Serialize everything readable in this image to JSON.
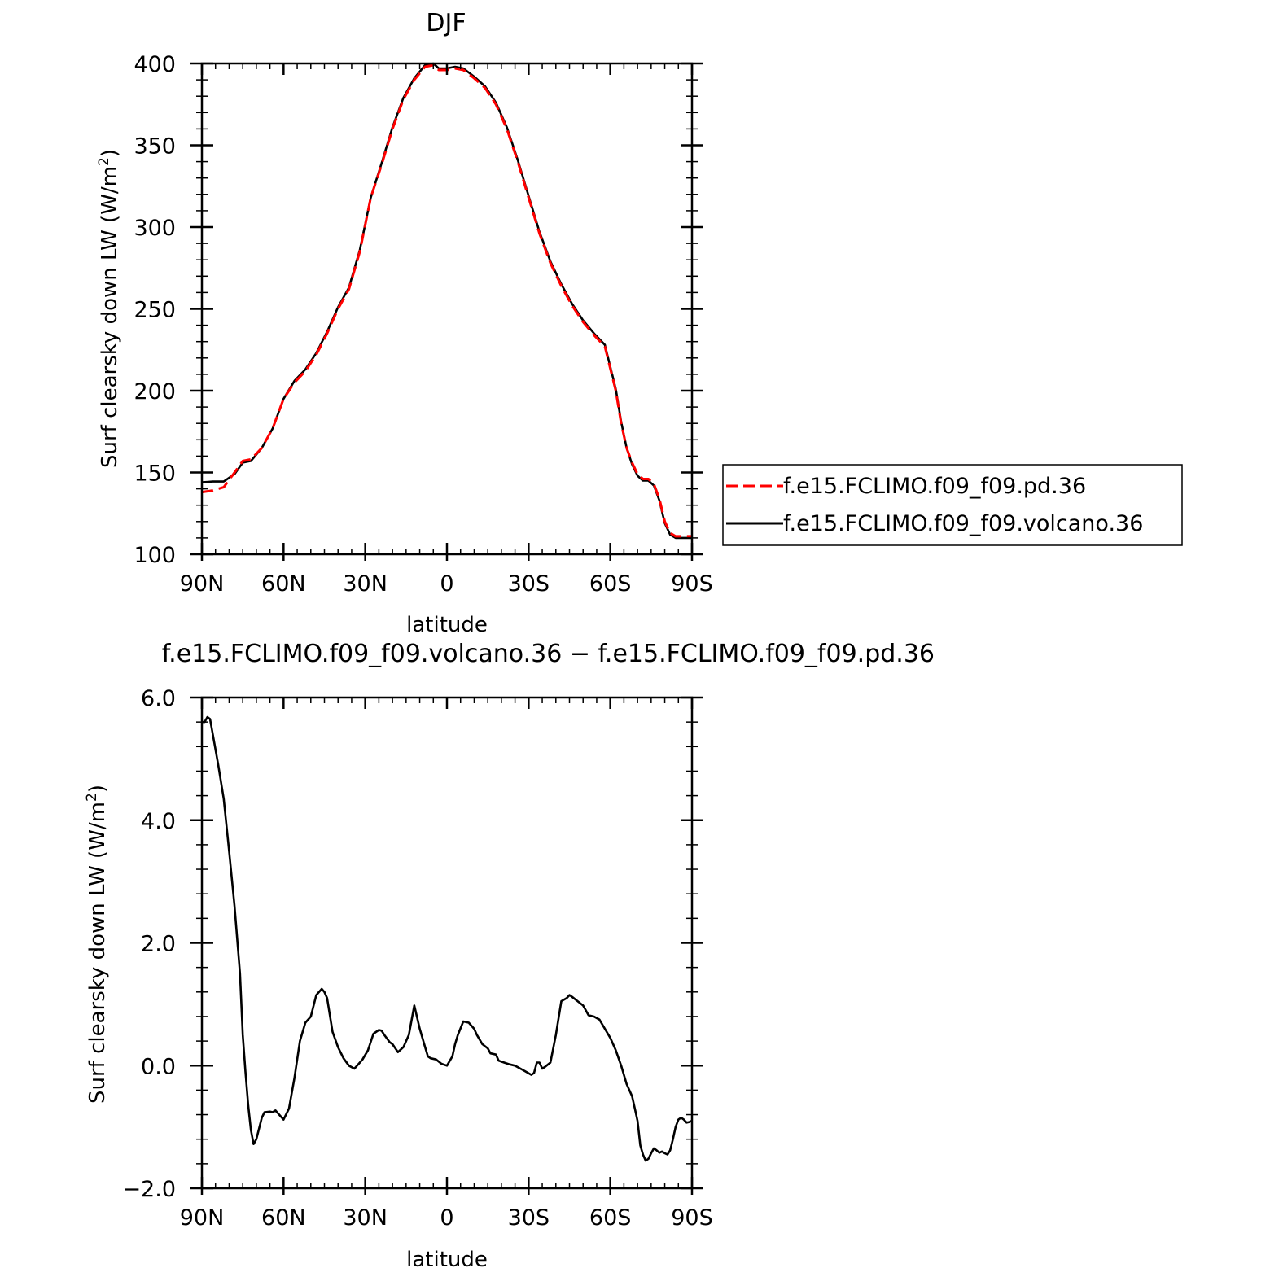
{
  "chart_data": [
    {
      "type": "line",
      "title": "DJF",
      "xlabel": "latitude",
      "ylabel": "Surf clearsky down LW (W/m²)",
      "ylabel_text": "Surf clearsky down LW (W/m",
      "ylabel_sup": "2",
      "ylabel_close": ")",
      "xlim": [
        90,
        -90
      ],
      "ylim": [
        100,
        400
      ],
      "xticks": [
        {
          "value": 90,
          "label": "90N"
        },
        {
          "value": 60,
          "label": "60N"
        },
        {
          "value": 30,
          "label": "30N"
        },
        {
          "value": 0,
          "label": "0"
        },
        {
          "value": -30,
          "label": "30S"
        },
        {
          "value": -60,
          "label": "60S"
        },
        {
          "value": -90,
          "label": "90S"
        }
      ],
      "yticks": [
        {
          "value": 100,
          "label": "100"
        },
        {
          "value": 150,
          "label": "150"
        },
        {
          "value": 200,
          "label": "200"
        },
        {
          "value": 250,
          "label": "250"
        },
        {
          "value": 300,
          "label": "300"
        },
        {
          "value": 350,
          "label": "350"
        },
        {
          "value": 400,
          "label": "400"
        }
      ],
      "legend": {
        "placement": "right"
      },
      "series": [
        {
          "name": "f.e15.FCLIMO.f09_f09.pd.36",
          "color": "#ff0000",
          "dash": true,
          "x": [
            90,
            86,
            82,
            78,
            75,
            72,
            68,
            64,
            60,
            56,
            52,
            48,
            44,
            40,
            36,
            32,
            28,
            24,
            20,
            16,
            12,
            8,
            5,
            3,
            0,
            -3,
            -6,
            -10,
            -14,
            -18,
            -22,
            -26,
            -30,
            -34,
            -38,
            -42,
            -46,
            -50,
            -54,
            -58,
            -62,
            -64,
            -66,
            -68,
            -70,
            -72,
            -74,
            -76,
            -78,
            -80,
            -82,
            -84,
            -86,
            -88,
            -90
          ],
          "y": [
            138,
            139,
            141,
            150,
            157,
            158,
            165,
            177,
            195,
            205,
            212,
            222,
            235,
            250,
            262,
            285,
            318,
            338,
            360,
            378,
            390,
            398,
            399,
            396,
            396,
            397,
            396,
            391,
            385,
            375,
            360,
            340,
            318,
            296,
            278,
            264,
            252,
            242,
            234,
            227,
            200,
            180,
            165,
            156,
            149,
            146,
            146,
            143,
            134,
            120,
            113,
            111,
            111,
            111,
            111
          ]
        },
        {
          "name": "f.e15.FCLIMO.f09_f09.volcano.36",
          "color": "#000000",
          "dash": false,
          "x": [
            90,
            86,
            82,
            78,
            75,
            72,
            68,
            64,
            60,
            56,
            52,
            48,
            44,
            40,
            36,
            32,
            28,
            24,
            20,
            16,
            12,
            8,
            5,
            3,
            0,
            -3,
            -6,
            -10,
            -14,
            -18,
            -22,
            -26,
            -30,
            -34,
            -38,
            -42,
            -46,
            -50,
            -54,
            -58,
            -62,
            -64,
            -66,
            -68,
            -70,
            -72,
            -74,
            -76,
            -78,
            -80,
            -82,
            -84,
            -86,
            -88,
            -90
          ],
          "y": [
            144,
            144.5,
            144.5,
            149,
            156,
            157,
            165,
            177,
            195,
            206,
            213,
            223,
            236,
            251,
            263,
            286,
            318,
            339,
            361,
            379,
            391,
            399,
            400,
            397,
            397,
            398,
            397,
            392,
            386,
            376,
            361,
            341,
            319,
            297,
            279,
            265,
            253,
            243,
            235,
            228,
            201,
            181,
            165,
            155,
            148,
            145,
            145,
            142,
            133,
            119,
            112,
            110,
            110,
            110,
            110
          ]
        }
      ]
    },
    {
      "type": "line",
      "title": "f.e15.FCLIMO.f09_f09.volcano.36 − f.e15.FCLIMO.f09_f09.pd.36",
      "xlabel": "latitude",
      "ylabel": "Surf clearsky down LW (W/m²)",
      "ylabel_text": "Surf clearsky down LW (W/m",
      "ylabel_sup": "2",
      "ylabel_close": ")",
      "xlim": [
        90,
        -90
      ],
      "ylim": [
        -2.0,
        6.0
      ],
      "xticks": [
        {
          "value": 90,
          "label": "90N"
        },
        {
          "value": 60,
          "label": "60N"
        },
        {
          "value": 30,
          "label": "30N"
        },
        {
          "value": 0,
          "label": "0"
        },
        {
          "value": -30,
          "label": "30S"
        },
        {
          "value": -60,
          "label": "60S"
        },
        {
          "value": -90,
          "label": "90S"
        }
      ],
      "yticks": [
        {
          "value": -2.0,
          "label": "−2.0"
        },
        {
          "value": 0.0,
          "label": "0.0"
        },
        {
          "value": 2.0,
          "label": "2.0"
        },
        {
          "value": 4.0,
          "label": "4.0"
        },
        {
          "value": 6.0,
          "label": "6.0"
        }
      ],
      "series": [
        {
          "color": "#000000",
          "dash": false,
          "x": [
            90,
            89,
            88,
            87,
            86,
            84,
            82,
            80,
            78,
            76,
            75,
            74,
            73,
            72,
            71,
            70,
            68,
            67,
            65,
            64,
            63,
            62,
            60,
            58,
            56,
            54,
            52,
            50,
            48,
            46,
            45,
            44,
            42,
            40,
            38,
            36,
            34,
            32,
            31,
            29,
            27,
            25,
            24,
            23,
            21,
            20,
            18,
            16,
            14,
            12,
            10,
            8,
            7,
            6,
            4,
            2,
            0,
            -2,
            -3,
            -4,
            -6,
            -8,
            -10,
            -11,
            -13,
            -15,
            -16,
            -18,
            -19,
            -21,
            -23,
            -25,
            -27,
            -29,
            -31,
            -32,
            -33,
            -34,
            -35,
            -36,
            -38,
            -40,
            -42,
            -44,
            -45,
            -46,
            -48,
            -50,
            -51,
            -52,
            -54,
            -56,
            -58,
            -60,
            -62,
            -64,
            -66,
            -68,
            -69,
            -70,
            -71,
            -72,
            -73,
            -74,
            -75,
            -76,
            -77,
            -78,
            -79,
            -80,
            -81,
            -82,
            -83,
            -84,
            -85,
            -86,
            -87,
            -88,
            -89,
            -90
          ],
          "y": [
            5.6,
            5.6,
            5.68,
            5.65,
            5.4,
            4.9,
            4.35,
            3.5,
            2.6,
            1.5,
            0.5,
            -0.1,
            -0.65,
            -1.05,
            -1.28,
            -1.2,
            -0.85,
            -0.76,
            -0.75,
            -0.76,
            -0.73,
            -0.78,
            -0.88,
            -0.7,
            -0.2,
            0.4,
            0.7,
            0.8,
            1.15,
            1.25,
            1.2,
            1.1,
            0.55,
            0.3,
            0.12,
            0.0,
            -0.05,
            0.05,
            0.1,
            0.25,
            0.52,
            0.58,
            0.57,
            0.5,
            0.38,
            0.35,
            0.22,
            0.3,
            0.5,
            0.98,
            0.6,
            0.3,
            0.15,
            0.12,
            0.1,
            0.03,
            0.0,
            0.15,
            0.35,
            0.5,
            0.72,
            0.7,
            0.6,
            0.5,
            0.35,
            0.28,
            0.2,
            0.18,
            0.08,
            0.05,
            0.02,
            0.0,
            -0.05,
            -0.1,
            -0.15,
            -0.12,
            0.05,
            0.05,
            -0.05,
            -0.02,
            0.05,
            0.5,
            1.05,
            1.1,
            1.15,
            1.12,
            1.05,
            0.98,
            0.9,
            0.82,
            0.8,
            0.75,
            0.6,
            0.45,
            0.25,
            0.0,
            -0.3,
            -0.5,
            -0.7,
            -0.9,
            -1.3,
            -1.45,
            -1.55,
            -1.52,
            -1.43,
            -1.35,
            -1.38,
            -1.42,
            -1.4,
            -1.43,
            -1.45,
            -1.38,
            -1.2,
            -1.0,
            -0.88,
            -0.85,
            -0.88,
            -0.93,
            -0.92,
            -0.9
          ]
        }
      ]
    }
  ]
}
